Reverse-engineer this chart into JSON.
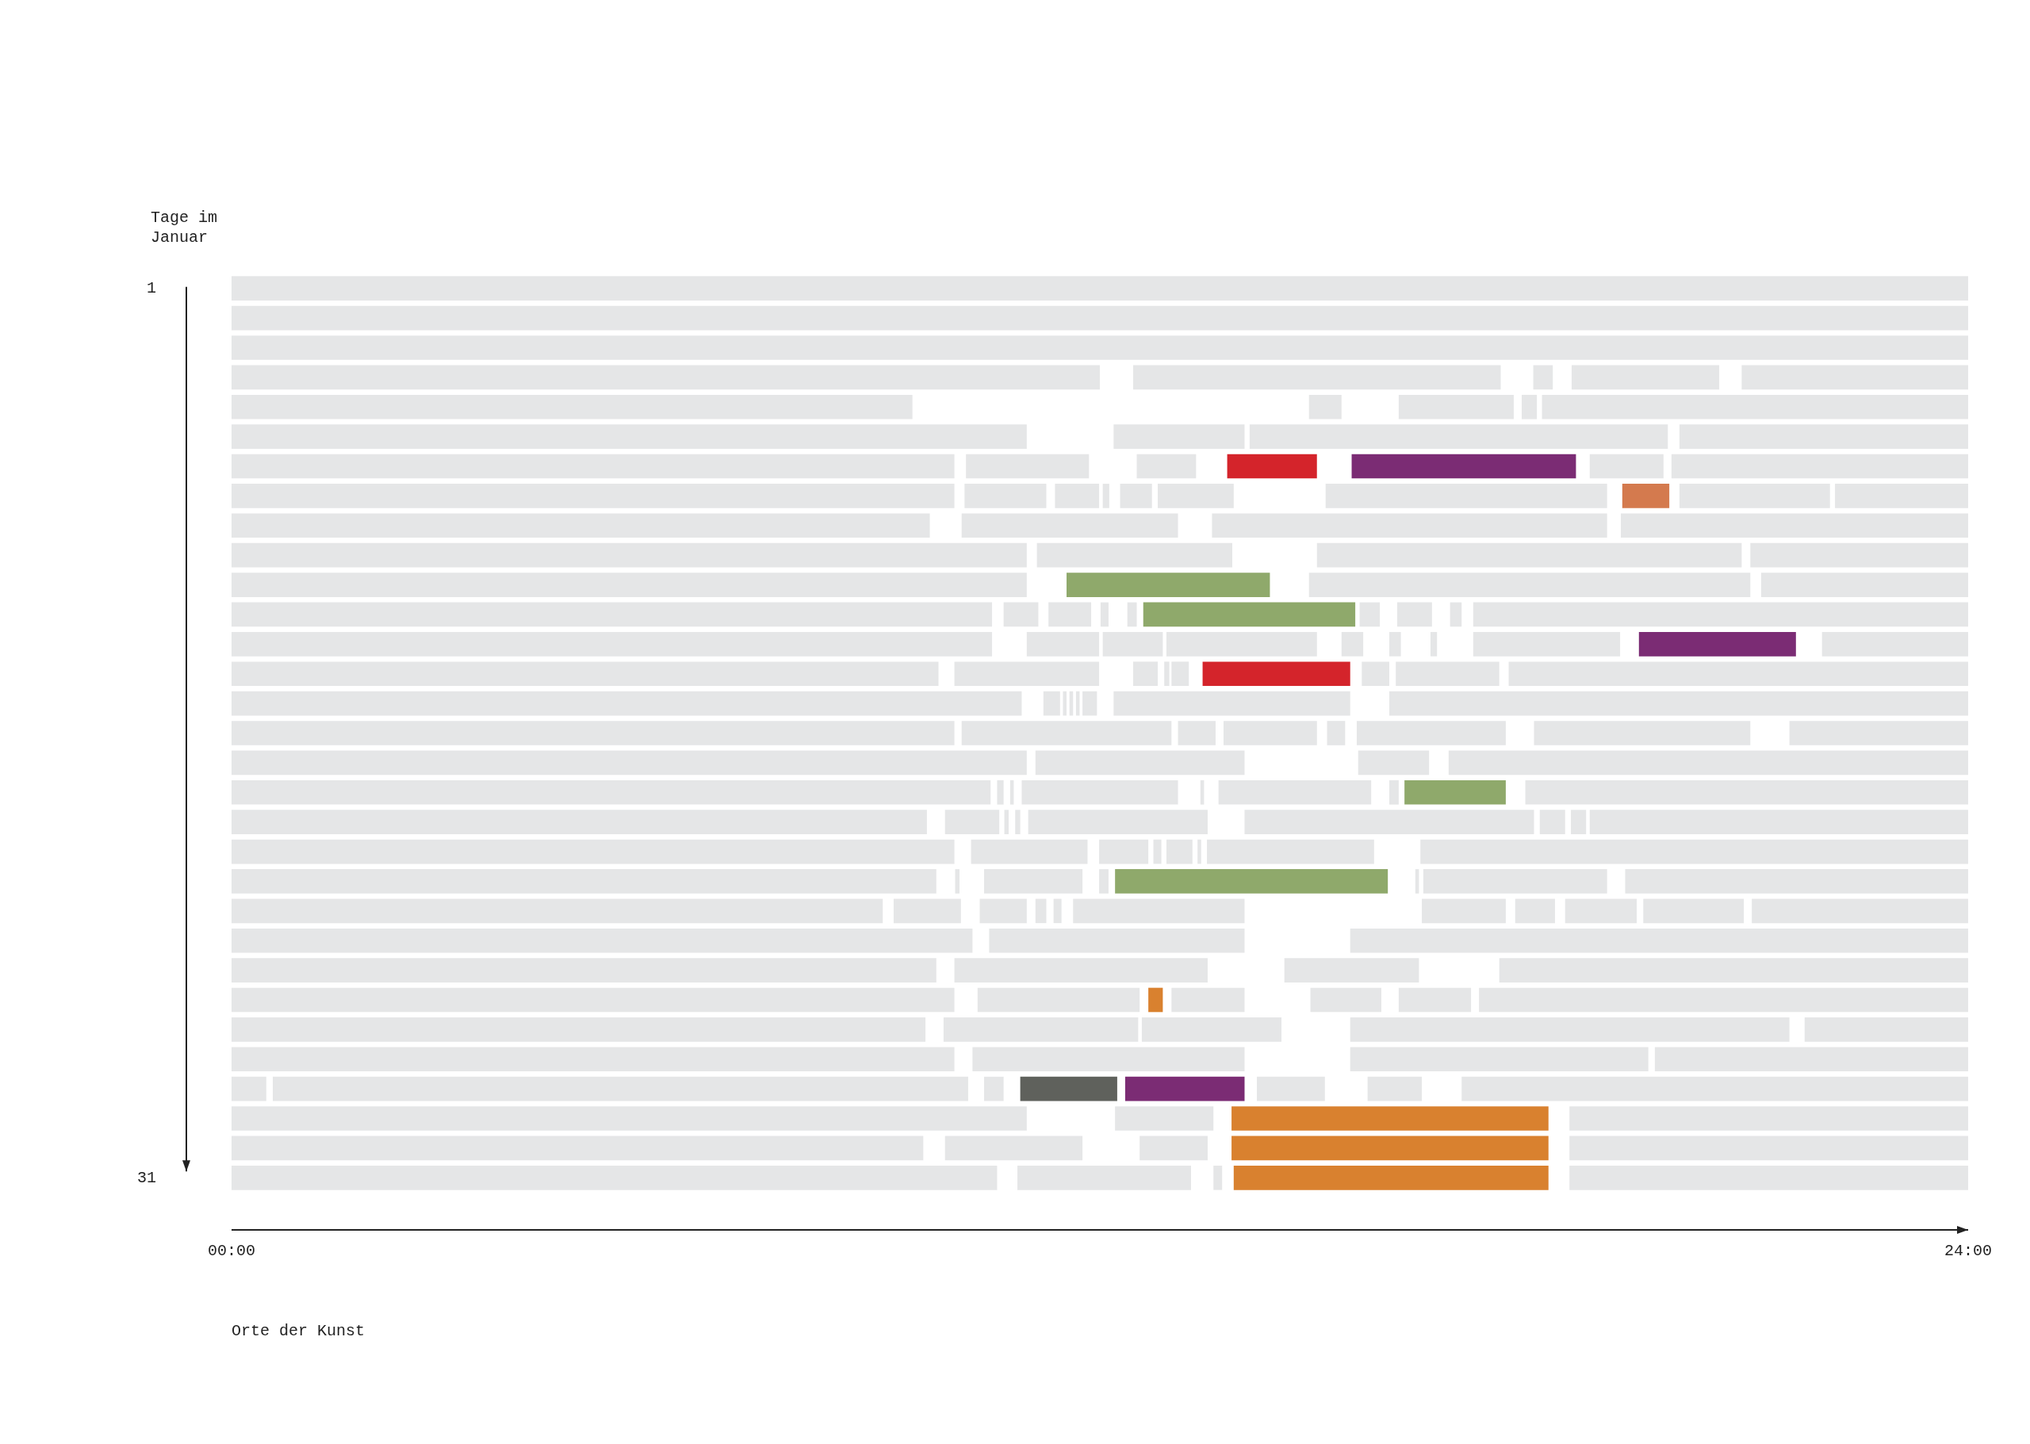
{
  "chart_data": {
    "type": "bar",
    "orientation": "horizontal",
    "ylabel": "Tage im Januar",
    "annotations": [
      "Orte der Kunst"
    ],
    "categories": [
      "1",
      null,
      null,
      null,
      null,
      null,
      null,
      null,
      null,
      null,
      null,
      null,
      null,
      null,
      null,
      null,
      null,
      null,
      null,
      null,
      null,
      null,
      null,
      null,
      null,
      null,
      null,
      null,
      null,
      null,
      "31"
    ],
    "xlim": [
      0,
      24
    ],
    "xticks": [
      {
        "value": 0,
        "label": "00:00"
      },
      {
        "value": 24,
        "label": "24:00"
      }
    ],
    "series": [
      {
        "color": "#e5e6e7",
        "base": [
          0,
          0,
          0,
          0,
          0,
          0,
          0,
          0,
          0,
          0,
          0,
          0,
          0,
          0,
          0,
          0,
          0,
          0,
          0,
          0,
          0,
          0,
          0,
          0,
          0,
          0,
          0,
          0,
          0,
          0,
          0
        ],
        "values": [
          24,
          24,
          24,
          12,
          9.41,
          10.99,
          9.99,
          9.99,
          9.65,
          10.99,
          10.99,
          10.51,
          10.51,
          9.77,
          10.92,
          9.99,
          10.99,
          10.49,
          9.61,
          9.99,
          9.74,
          9.0,
          10.24,
          9.74,
          9.99,
          9.59,
          9.99,
          0.48,
          10.99,
          9.56,
          10.58
        ]
      },
      {
        "color": "#e5e6e7",
        "base": [
          null,
          null,
          null,
          12.46,
          14.89,
          12.19,
          10.15,
          10.13,
          10.09,
          11.13,
          11.54,
          10.67,
          10.99,
          9.99,
          11.22,
          10.09,
          11.11,
          10.58,
          9.86,
          10.22,
          10.0,
          9.15,
          10.47,
          9.99,
          10.31,
          9.84,
          10.24,
          0.57,
          12.21,
          9.86,
          10.86
        ],
        "values": [
          null,
          null,
          null,
          5.08,
          0.45,
          1.81,
          1.7,
          1.13,
          2.99,
          2.7,
          2.81,
          0.48,
          1.0,
          2.0,
          0.23,
          2.9,
          2.89,
          0.09,
          0.75,
          1.61,
          0.06,
          0.93,
          3.53,
          3.5,
          2.24,
          2.69,
          3.76,
          9.61,
          1.36,
          1.9,
          2.4
        ],
        "colors": [
          null,
          null,
          null,
          null,
          null,
          null,
          null,
          null,
          null,
          null,
          "#8fa96b",
          null,
          null,
          null,
          null,
          null,
          null,
          null,
          null,
          null,
          null,
          null,
          null,
          null,
          null,
          null,
          null,
          null,
          null,
          null,
          null
        ]
      },
      {
        "color": "#e5e6e7",
        "base": [
          null,
          null,
          null,
          17.99,
          16.13,
          14.07,
          12.51,
          11.38,
          13.55,
          15.0,
          14.89,
          11.29,
          12.04,
          12.46,
          11.49,
          13.08,
          15.57,
          10.76,
          10.68,
          11.99,
          10.4,
          10.34,
          15.46,
          14.55,
          12.67,
          12.58,
          15.46,
          10.4,
          13.82,
          12.55,
          13.57
        ],
        "values": [
          null,
          null,
          null,
          0.27,
          1.59,
          5.78,
          0.82,
          0.61,
          5.46,
          5.87,
          6.1,
          0.59,
          0.83,
          0.34,
          0.05,
          0.52,
          0.98,
          0.05,
          0.06,
          0.68,
          1.36,
          0.65,
          8.54,
          1.86,
          0.2,
          1.93,
          4.12,
          0.27,
          4.38,
          0.94,
          0.12
        ],
        "colors": [
          null,
          null,
          null,
          null,
          null,
          null,
          null,
          null,
          null,
          null,
          null,
          null,
          null,
          null,
          null,
          null,
          null,
          null,
          null,
          null,
          null,
          null,
          null,
          null,
          "#d9812f",
          null,
          null,
          null,
          "#d9812f",
          null,
          null
        ]
      },
      {
        "color": "#e5e6e7",
        "base": [
          null,
          null,
          null,
          18.52,
          17.83,
          20.01,
          13.76,
          12.04,
          19.2,
          20.99,
          21.14,
          12.01,
          12.92,
          12.89,
          11.58,
          13.71,
          16.82,
          10.92,
          10.83,
          12.74,
          11.99,
          11.11,
          null,
          17.52,
          12.99,
          15.46,
          19.67,
          10.9,
          18.49,
          13.82,
          13.85
        ],
        "values": [
          null,
          null,
          null,
          2.04,
          0.21,
          3.99,
          1.24,
          0.09,
          4.8,
          3.01,
          2.86,
          0.11,
          2.08,
          0.07,
          0.05,
          1.29,
          7.18,
          2.16,
          0.07,
          0.11,
          0.13,
          0.15,
          null,
          6.48,
          1.01,
          6.07,
          4.33,
          1.34,
          5.51,
          4.38,
          4.35
        ],
        "colors": [
          null,
          null,
          null,
          null,
          null,
          null,
          "#d4242b",
          null,
          null,
          null,
          null,
          null,
          null,
          null,
          null,
          null,
          null,
          null,
          null,
          null,
          null,
          null,
          null,
          null,
          null,
          null,
          null,
          "#5f615c",
          null,
          "#d9812f",
          "#d9812f"
        ]
      },
      {
        "color": "#e5e6e7",
        "base": [
          null,
          null,
          null,
          20.87,
          18.11,
          null,
          15.48,
          12.28,
          null,
          null,
          null,
          12.38,
          15.34,
          12.99,
          11.67,
          15.14,
          null,
          13.39,
          11.01,
          12.92,
          12.21,
          11.36,
          null,
          null,
          14.91,
          21.74,
          null,
          12.35,
          null,
          18.49,
          18.49
        ],
        "values": [
          null,
          null,
          null,
          3.13,
          5.89,
          null,
          3.1,
          0.44,
          null,
          null,
          null,
          0.13,
          0.3,
          0.24,
          0.05,
          0.25,
          null,
          0.05,
          2.48,
          0.36,
          3.77,
          0.11,
          null,
          null,
          0.98,
          2.26,
          null,
          1.65,
          null,
          5.51,
          5.51
        ],
        "colors": [
          null,
          null,
          null,
          null,
          null,
          null,
          "#7b2c74",
          null,
          null,
          null,
          null,
          null,
          null,
          null,
          null,
          null,
          null,
          null,
          null,
          null,
          "#8fa96b",
          null,
          null,
          null,
          null,
          null,
          null,
          "#7b2c74",
          null,
          null,
          null
        ]
      },
      {
        "color": "#e5e6e7",
        "base": [
          null,
          null,
          null,
          null,
          null,
          null,
          18.77,
          12.8,
          null,
          null,
          null,
          12.6,
          16.0,
          13.42,
          11.76,
          15.55,
          null,
          13.64,
          14.0,
          13.35,
          16.36,
          11.63,
          null,
          null,
          16.13,
          null,
          null,
          14.17,
          null,
          null,
          null
        ],
        "values": [
          null,
          null,
          null,
          null,
          null,
          null,
          1.02,
          1.05,
          null,
          null,
          null,
          2.93,
          0.16,
          2.04,
          0.2,
          2.06,
          null,
          2.11,
          4.0,
          0.05,
          0.05,
          2.37,
          null,
          null,
          1.0,
          null,
          null,
          0.94,
          null,
          null,
          null
        ],
        "colors": [
          null,
          null,
          null,
          null,
          null,
          null,
          null,
          null,
          null,
          null,
          null,
          "#8fa96b",
          null,
          "#d4242b",
          null,
          null,
          null,
          null,
          null,
          null,
          null,
          null,
          null,
          null,
          null,
          null,
          null,
          null,
          null,
          null,
          null
        ]
      },
      {
        "color": "#e5e6e7",
        "base": [
          null,
          null,
          null,
          null,
          null,
          null,
          19.9,
          15.12,
          null,
          null,
          null,
          15.59,
          16.57,
          15.62,
          12.19,
          18.0,
          null,
          16.0,
          18.08,
          13.48,
          16.47,
          16.45,
          null,
          null,
          17.24,
          null,
          null,
          15.7,
          null,
          null,
          null
        ],
        "values": [
          null,
          null,
          null,
          null,
          null,
          null,
          4.1,
          3.89,
          null,
          null,
          null,
          0.28,
          0.09,
          0.38,
          3.27,
          2.99,
          null,
          0.13,
          0.35,
          2.31,
          2.54,
          1.16,
          null,
          null,
          6.76,
          null,
          null,
          0.75,
          null,
          null,
          null
        ]
      },
      {
        "color": "#e5e6e7",
        "base": [
          null,
          null,
          null,
          null,
          null,
          null,
          null,
          19.22,
          null,
          null,
          null,
          16.11,
          17.16,
          16.09,
          16.0,
          21.53,
          null,
          16.21,
          18.51,
          16.43,
          19.26,
          17.74,
          null,
          null,
          null,
          null,
          null,
          17.0,
          null,
          null,
          null
        ],
        "values": [
          null,
          null,
          null,
          null,
          null,
          null,
          null,
          0.65,
          null,
          null,
          null,
          0.48,
          2.03,
          1.43,
          8.0,
          2.47,
          null,
          1.4,
          0.21,
          7.57,
          4.74,
          0.55,
          null,
          null,
          null,
          null,
          null,
          7.0,
          null,
          null,
          null
        ],
        "colors": [
          null,
          null,
          null,
          null,
          null,
          null,
          null,
          "#d47a4e",
          null,
          null,
          null,
          null,
          null,
          null,
          null,
          null,
          null,
          "#8fa96b",
          null,
          null,
          null,
          null,
          null,
          null,
          null,
          null,
          null,
          null,
          null,
          null,
          null
        ]
      },
      {
        "color": "#e5e6e7",
        "base": [
          null,
          null,
          null,
          null,
          null,
          null,
          null,
          20.01,
          null,
          null,
          null,
          16.84,
          19.45,
          17.65,
          null,
          null,
          null,
          17.88,
          18.77,
          null,
          null,
          18.43,
          null,
          null,
          null,
          null,
          null,
          null,
          null,
          null,
          null
        ],
        "values": [
          null,
          null,
          null,
          null,
          null,
          null,
          null,
          2.08,
          null,
          null,
          null,
          0.16,
          2.17,
          6.35,
          null,
          null,
          null,
          6.12,
          5.23,
          null,
          null,
          0.99,
          null,
          null,
          null,
          null,
          null,
          null,
          null,
          null,
          null
        ],
        "colors": [
          null,
          null,
          null,
          null,
          null,
          null,
          null,
          null,
          null,
          null,
          null,
          null,
          "#7b2c74",
          null,
          null,
          null,
          null,
          null,
          null,
          null,
          null,
          null,
          null,
          null,
          null,
          null,
          null,
          null,
          null,
          null,
          null
        ]
      },
      {
        "color": "#e5e6e7",
        "base": [
          null,
          null,
          null,
          null,
          null,
          null,
          null,
          22.16,
          null,
          null,
          null,
          17.16,
          21.98,
          null,
          null,
          null,
          null,
          null,
          null,
          null,
          null,
          19.51,
          null,
          null,
          null,
          null,
          null,
          null,
          null,
          null,
          null
        ],
        "values": [
          null,
          null,
          null,
          null,
          null,
          null,
          null,
          1.84,
          null,
          null,
          null,
          6.84,
          2.02,
          null,
          null,
          null,
          null,
          null,
          null,
          null,
          null,
          1.39,
          null,
          null,
          null,
          null,
          null,
          null,
          null,
          null,
          null
        ]
      },
      {
        "color": "#e5e6e7",
        "base": [
          null,
          null,
          null,
          null,
          null,
          null,
          null,
          null,
          null,
          null,
          null,
          null,
          null,
          null,
          null,
          null,
          null,
          null,
          null,
          null,
          null,
          21.01,
          null,
          null,
          null,
          null,
          null,
          null,
          null,
          null,
          null
        ],
        "values": [
          null,
          null,
          null,
          null,
          null,
          null,
          null,
          null,
          null,
          null,
          null,
          null,
          null,
          null,
          null,
          null,
          null,
          null,
          null,
          null,
          null,
          2.99,
          null,
          null,
          null,
          null,
          null,
          null,
          null,
          null,
          null
        ]
      }
    ]
  }
}
